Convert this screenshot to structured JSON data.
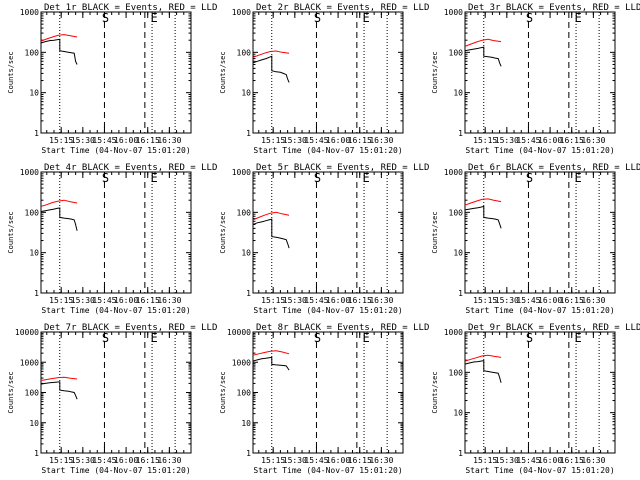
{
  "figure": {
    "title_tail": " BLACK = Events, RED = LLD",
    "x_axis_label": "Start Time (04-Nov-07 15:01:20)",
    "y_axis_label": "Counts/sec",
    "start_marker_label": "S",
    "end_marker_label": "E",
    "colors": {
      "events": "#000000",
      "lld": "#ff0000",
      "background": "#ffffff"
    }
  },
  "chart_data": [
    {
      "type": "line",
      "title": "Det 1r",
      "xlabel": "Start Time (04-Nov-07 15:01:20)",
      "ylabel": "Counts/sec",
      "y_scale": "log",
      "ylim": [
        1,
        1000
      ],
      "yticks": [
        "1",
        "10",
        "100",
        "1000"
      ],
      "xlim": [
        "15:01",
        "16:45"
      ],
      "xticks": [
        "15:15",
        "15:30",
        "15:45",
        "16:00",
        "16:15",
        "16:30"
      ],
      "markers": {
        "dotted": [
          "15:14",
          "16:18",
          "16:34"
        ],
        "dashed": [
          "15:45",
          "16:13"
        ],
        "S_at": "15:45",
        "E_at": "16:18"
      },
      "series": [
        {
          "name": "BLACK = Events",
          "color": "#000000",
          "x": [
            "15:01",
            "15:04",
            "15:07",
            "15:10",
            "15:12",
            "15:14",
            "15:14",
            "15:17",
            "15:20",
            "15:22",
            "15:24",
            "15:25",
            "15:26"
          ],
          "y": [
            170,
            185,
            195,
            200,
            205,
            210,
            110,
            105,
            100,
            98,
            95,
            60,
            50
          ]
        },
        {
          "name": "RED = LLD",
          "color": "#ff0000",
          "x": [
            "15:01",
            "15:05",
            "15:09",
            "15:13",
            "15:17",
            "15:21",
            "15:26"
          ],
          "y": [
            190,
            215,
            240,
            265,
            275,
            260,
            240
          ]
        }
      ]
    },
    {
      "type": "line",
      "title": "Det 2r",
      "xlabel": "Start Time (04-Nov-07 15:01:20)",
      "ylabel": "Counts/sec",
      "y_scale": "log",
      "ylim": [
        1,
        1000
      ],
      "yticks": [
        "1",
        "10",
        "100",
        "1000"
      ],
      "xlim": [
        "15:01",
        "16:45"
      ],
      "xticks": [
        "15:15",
        "15:30",
        "15:45",
        "16:00",
        "16:15",
        "16:30"
      ],
      "markers": {
        "dotted": [
          "15:14",
          "16:18",
          "16:34"
        ],
        "dashed": [
          "15:45",
          "16:13"
        ],
        "S_at": "15:45",
        "E_at": "16:18"
      },
      "series": [
        {
          "name": "BLACK = Events",
          "color": "#000000",
          "x": [
            "15:01",
            "15:04",
            "15:07",
            "15:10",
            "15:12",
            "15:14",
            "15:14",
            "15:17",
            "15:20",
            "15:22",
            "15:24",
            "15:25",
            "15:26"
          ],
          "y": [
            55,
            60,
            65,
            70,
            75,
            80,
            35,
            33,
            32,
            30,
            28,
            22,
            18
          ]
        },
        {
          "name": "RED = LLD",
          "color": "#ff0000",
          "x": [
            "15:01",
            "15:05",
            "15:09",
            "15:13",
            "15:17",
            "15:21",
            "15:26"
          ],
          "y": [
            75,
            85,
            95,
            105,
            108,
            100,
            95
          ]
        }
      ]
    },
    {
      "type": "line",
      "title": "Det 3r",
      "xlabel": "Start Time (04-Nov-07 15:01:20)",
      "ylabel": "Counts/sec",
      "y_scale": "log",
      "ylim": [
        1,
        1000
      ],
      "yticks": [
        "1",
        "10",
        "100",
        "1000"
      ],
      "xlim": [
        "15:01",
        "16:45"
      ],
      "xticks": [
        "15:15",
        "15:30",
        "15:45",
        "16:00",
        "16:15",
        "16:30"
      ],
      "markers": {
        "dotted": [
          "15:14",
          "16:18",
          "16:34"
        ],
        "dashed": [
          "15:45",
          "16:13"
        ],
        "S_at": "15:45",
        "E_at": "16:18"
      },
      "series": [
        {
          "name": "BLACK = Events",
          "color": "#000000",
          "x": [
            "15:01",
            "15:04",
            "15:07",
            "15:10",
            "15:12",
            "15:14",
            "15:14",
            "15:17",
            "15:20",
            "15:22",
            "15:24",
            "15:25",
            "15:26"
          ],
          "y": [
            110,
            115,
            120,
            125,
            130,
            135,
            80,
            78,
            75,
            72,
            70,
            55,
            45
          ]
        },
        {
          "name": "RED = LLD",
          "color": "#ff0000",
          "x": [
            "15:01",
            "15:05",
            "15:09",
            "15:13",
            "15:17",
            "15:21",
            "15:26"
          ],
          "y": [
            140,
            160,
            180,
            200,
            210,
            195,
            185
          ]
        }
      ]
    },
    {
      "type": "line",
      "title": "Det 4r",
      "xlabel": "Start Time (04-Nov-07 15:01:20)",
      "ylabel": "Counts/sec",
      "y_scale": "log",
      "ylim": [
        1,
        1000
      ],
      "yticks": [
        "1",
        "10",
        "100",
        "1000"
      ],
      "xlim": [
        "15:01",
        "16:45"
      ],
      "xticks": [
        "15:15",
        "15:30",
        "15:45",
        "16:00",
        "16:15",
        "16:30"
      ],
      "markers": {
        "dotted": [
          "15:14",
          "16:18",
          "16:34"
        ],
        "dashed": [
          "15:45",
          "16:13"
        ],
        "S_at": "15:45",
        "E_at": "16:18"
      },
      "series": [
        {
          "name": "BLACK = Events",
          "color": "#000000",
          "x": [
            "15:01",
            "15:04",
            "15:07",
            "15:10",
            "15:12",
            "15:14",
            "15:14",
            "15:17",
            "15:20",
            "15:22",
            "15:24",
            "15:25",
            "15:26"
          ],
          "y": [
            105,
            110,
            115,
            120,
            125,
            128,
            75,
            72,
            70,
            68,
            65,
            50,
            35
          ]
        },
        {
          "name": "RED = LLD",
          "color": "#ff0000",
          "x": [
            "15:01",
            "15:05",
            "15:09",
            "15:13",
            "15:17",
            "15:21",
            "15:26"
          ],
          "y": [
            140,
            155,
            175,
            190,
            200,
            185,
            170
          ]
        }
      ]
    },
    {
      "type": "line",
      "title": "Det 5r",
      "xlabel": "Start Time (04-Nov-07 15:01:20)",
      "ylabel": "Counts/sec",
      "y_scale": "log",
      "ylim": [
        1,
        1000
      ],
      "yticks": [
        "1",
        "10",
        "100",
        "1000"
      ],
      "xlim": [
        "15:01",
        "16:45"
      ],
      "xticks": [
        "15:15",
        "15:30",
        "15:45",
        "16:00",
        "16:15",
        "16:30"
      ],
      "markers": {
        "dotted": [
          "15:14",
          "16:18",
          "16:34"
        ],
        "dashed": [
          "15:45",
          "16:13"
        ],
        "S_at": "15:45",
        "E_at": "16:18"
      },
      "series": [
        {
          "name": "BLACK = Events",
          "color": "#000000",
          "x": [
            "15:01",
            "15:04",
            "15:07",
            "15:10",
            "15:12",
            "15:14",
            "15:14",
            "15:17",
            "15:20",
            "15:22",
            "15:24",
            "15:25",
            "15:26"
          ],
          "y": [
            50,
            55,
            58,
            62,
            65,
            68,
            25,
            24,
            23,
            22,
            21,
            17,
            13
          ]
        },
        {
          "name": "RED = LLD",
          "color": "#ff0000",
          "x": [
            "15:01",
            "15:05",
            "15:09",
            "15:13",
            "15:17",
            "15:21",
            "15:26"
          ],
          "y": [
            65,
            75,
            85,
            95,
            100,
            92,
            85
          ]
        }
      ]
    },
    {
      "type": "line",
      "title": "Det 6r",
      "xlabel": "Start Time (04-Nov-07 15:01:20)",
      "ylabel": "Counts/sec",
      "y_scale": "log",
      "ylim": [
        1,
        1000
      ],
      "yticks": [
        "1",
        "10",
        "100",
        "1000"
      ],
      "xlim": [
        "15:01",
        "16:45"
      ],
      "xticks": [
        "15:15",
        "15:30",
        "15:45",
        "16:00",
        "16:15",
        "16:30"
      ],
      "markers": {
        "dotted": [
          "15:14",
          "16:18",
          "16:34"
        ],
        "dashed": [
          "15:45",
          "16:13"
        ],
        "S_at": "15:45",
        "E_at": "16:18"
      },
      "series": [
        {
          "name": "BLACK = Events",
          "color": "#000000",
          "x": [
            "15:01",
            "15:04",
            "15:07",
            "15:10",
            "15:12",
            "15:14",
            "15:14",
            "15:17",
            "15:20",
            "15:22",
            "15:24",
            "15:25",
            "15:26"
          ],
          "y": [
            115,
            120,
            125,
            130,
            135,
            140,
            75,
            72,
            70,
            68,
            65,
            52,
            40
          ]
        },
        {
          "name": "RED = LLD",
          "color": "#ff0000",
          "x": [
            "15:01",
            "15:05",
            "15:09",
            "15:13",
            "15:17",
            "15:21",
            "15:26"
          ],
          "y": [
            150,
            170,
            190,
            210,
            215,
            200,
            185
          ]
        }
      ]
    },
    {
      "type": "line",
      "title": "Det 7r",
      "xlabel": "Start Time (04-Nov-07 15:01:20)",
      "ylabel": "Counts/sec",
      "y_scale": "log",
      "ylim": [
        1,
        10000
      ],
      "yticks": [
        "1",
        "10",
        "100",
        "1000",
        "10000"
      ],
      "xlim": [
        "15:01",
        "16:45"
      ],
      "xticks": [
        "15:15",
        "15:30",
        "15:45",
        "16:00",
        "16:15",
        "16:30"
      ],
      "markers": {
        "dotted": [
          "15:14",
          "16:18",
          "16:34"
        ],
        "dashed": [
          "15:45",
          "16:13"
        ],
        "S_at": "15:45",
        "E_at": "16:18"
      },
      "series": [
        {
          "name": "BLACK = Events",
          "color": "#000000",
          "x": [
            "15:01",
            "15:04",
            "15:07",
            "15:10",
            "15:12",
            "15:14",
            "15:14",
            "15:17",
            "15:20",
            "15:22",
            "15:24",
            "15:25",
            "15:26"
          ],
          "y": [
            190,
            200,
            210,
            215,
            220,
            225,
            120,
            115,
            110,
            105,
            100,
            80,
            60
          ]
        },
        {
          "name": "RED = LLD",
          "color": "#ff0000",
          "x": [
            "15:01",
            "15:05",
            "15:09",
            "15:13",
            "15:17",
            "15:21",
            "15:26"
          ],
          "y": [
            250,
            270,
            290,
            310,
            320,
            300,
            280
          ]
        }
      ]
    },
    {
      "type": "line",
      "title": "Det 8r",
      "xlabel": "Start Time (04-Nov-07 15:01:20)",
      "ylabel": "Counts/sec",
      "y_scale": "log",
      "ylim": [
        1,
        10000
      ],
      "yticks": [
        "1",
        "10",
        "100",
        "1000",
        "10000"
      ],
      "xlim": [
        "15:01",
        "16:45"
      ],
      "xticks": [
        "15:15",
        "15:30",
        "15:45",
        "16:00",
        "16:15",
        "16:30"
      ],
      "markers": {
        "dotted": [
          "15:14",
          "16:18",
          "16:34"
        ],
        "dashed": [
          "15:45",
          "16:13"
        ],
        "S_at": "15:45",
        "E_at": "16:18"
      },
      "series": [
        {
          "name": "BLACK = Events",
          "color": "#000000",
          "x": [
            "15:01",
            "15:04",
            "15:07",
            "15:10",
            "15:12",
            "15:14",
            "15:14",
            "15:17",
            "15:20",
            "15:22",
            "15:24",
            "15:25",
            "15:26"
          ],
          "y": [
            1100,
            1200,
            1300,
            1350,
            1400,
            1450,
            850,
            820,
            800,
            780,
            760,
            650,
            550
          ]
        },
        {
          "name": "RED = LLD",
          "color": "#ff0000",
          "x": [
            "15:01",
            "15:05",
            "15:09",
            "15:13",
            "15:17",
            "15:21",
            "15:26"
          ],
          "y": [
            1700,
            1900,
            2100,
            2300,
            2400,
            2200,
            1900
          ]
        }
      ]
    },
    {
      "type": "line",
      "title": "Det 9r",
      "xlabel": "Start Time (04-Nov-07 15:01:20)",
      "ylabel": "Counts/sec",
      "y_scale": "log",
      "ylim": [
        1,
        1000
      ],
      "yticks": [
        "1",
        "10",
        "100",
        "1000"
      ],
      "xlim": [
        "15:01",
        "16:45"
      ],
      "xticks": [
        "15:15",
        "15:30",
        "15:45",
        "16:00",
        "16:15",
        "16:30"
      ],
      "markers": {
        "dotted": [
          "15:14",
          "16:18",
          "16:34"
        ],
        "dashed": [
          "15:45",
          "16:13"
        ],
        "S_at": "15:45",
        "E_at": "16:18"
      },
      "series": [
        {
          "name": "BLACK = Events",
          "color": "#000000",
          "x": [
            "15:01",
            "15:04",
            "15:07",
            "15:10",
            "15:12",
            "15:14",
            "15:14",
            "15:17",
            "15:20",
            "15:22",
            "15:24",
            "15:25",
            "15:26"
          ],
          "y": [
            160,
            170,
            180,
            185,
            190,
            195,
            110,
            105,
            100,
            98,
            95,
            75,
            55
          ]
        },
        {
          "name": "RED = LLD",
          "color": "#ff0000",
          "x": [
            "15:01",
            "15:05",
            "15:09",
            "15:13",
            "15:17",
            "15:21",
            "15:26"
          ],
          "y": [
            190,
            210,
            230,
            255,
            265,
            250,
            235
          ]
        }
      ]
    }
  ]
}
